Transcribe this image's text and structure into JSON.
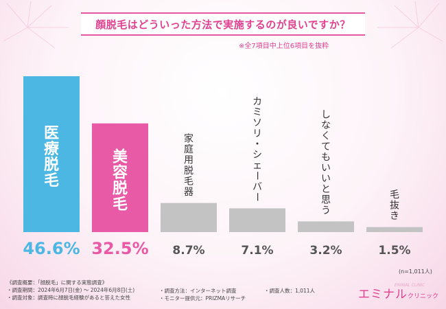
{
  "header": {
    "title": "顔脱毛はどういった方法で実施するのが良いですか？",
    "note": "※全7項目中上位6項目を抜粋"
  },
  "chart_data": {
    "type": "bar",
    "title": "顔脱毛はどういった方法で実施するのが良いですか？",
    "categories": [
      "医療脱毛",
      "美容脱毛",
      "家庭用脱毛器",
      "カミソリ・シェーバー",
      "しなくてもいいと思う",
      "毛抜き"
    ],
    "values": [
      46.6,
      32.5,
      8.7,
      7.1,
      3.2,
      1.5
    ],
    "value_labels": [
      "46.6%",
      "32.5%",
      "8.7%",
      "7.1%",
      "3.2%",
      "1.5%"
    ],
    "unit": "%",
    "colors": [
      "#4bb7e2",
      "#e85aa6",
      "#c3c3c3",
      "#c3c3c3",
      "#c3c3c3",
      "#c3c3c3"
    ],
    "value_colors": [
      "#4bb7e2",
      "#e85aa6",
      "#555555",
      "#555555",
      "#555555",
      "#555555"
    ],
    "ylim": [
      0,
      50
    ],
    "grid": false,
    "xlabel": "",
    "ylabel": ""
  },
  "sample_note": "(n=1,011人)",
  "footer": {
    "survey_overview": "《調査概要：「顔脱毛」に関する実態調査》",
    "period": "・調査期間：2024年6月7日(金) ～ 2024年6月8日(土)",
    "method": "・調査方法：インターネット調査",
    "respondents": "・調査人数：1,011人",
    "target": "・調査対象：調査時に顔脱毛経験があると答えた女性",
    "provider": "・モニター提供元：PRIZMAリサーチ"
  },
  "logo": {
    "main": "エミナル",
    "sub": "クリニック",
    "ghost": "EMINAL CLINIC"
  }
}
